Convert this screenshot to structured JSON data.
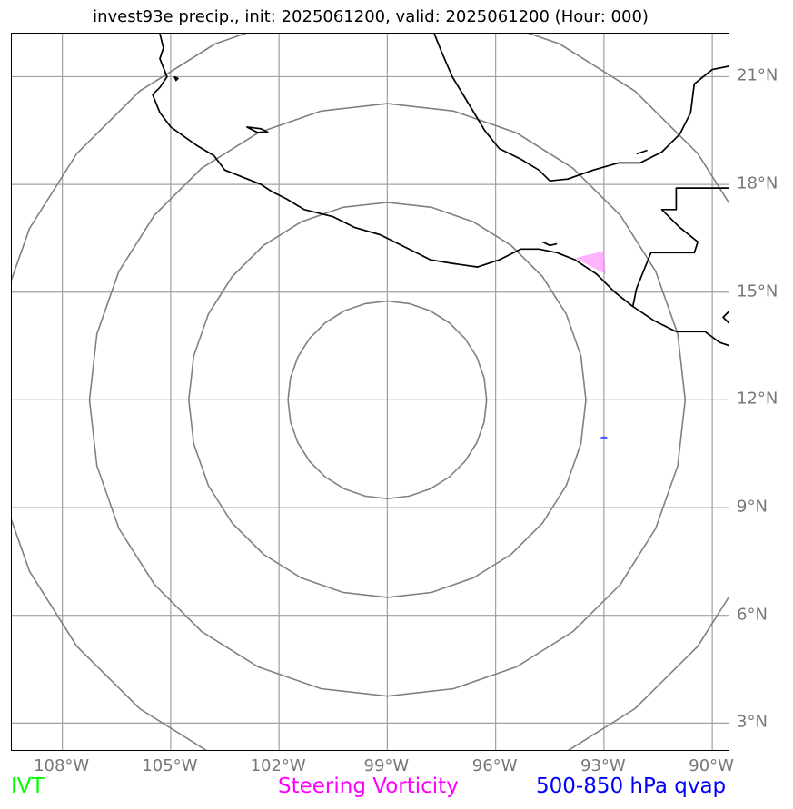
{
  "title": "invest93e precip., init: 2025061200, valid: 2025061200 (Hour: 000)",
  "map": {
    "lon_range": [
      -109.4,
      -89.5
    ],
    "lat_range": [
      2.2,
      22.2
    ],
    "lon_ticks": [
      {
        "value": -108,
        "label": "108°W"
      },
      {
        "value": -105,
        "label": "105°W"
      },
      {
        "value": -102,
        "label": "102°W"
      },
      {
        "value": -99,
        "label": "99°W"
      },
      {
        "value": -96,
        "label": "96°W"
      },
      {
        "value": -93,
        "label": "93°W"
      },
      {
        "value": -90,
        "label": "90°W"
      }
    ],
    "lat_ticks": [
      {
        "value": 3,
        "label": "3°N"
      },
      {
        "value": 6,
        "label": "6°N"
      },
      {
        "value": 9,
        "label": "9°N"
      },
      {
        "value": 12,
        "label": "12°N"
      },
      {
        "value": 15,
        "label": "15°N"
      },
      {
        "value": 18,
        "label": "18°N"
      },
      {
        "value": 21,
        "label": "21°N"
      }
    ],
    "grid": true,
    "range_rings": {
      "center": {
        "lon": -99,
        "lat": 12
      },
      "radii_deg": [
        2.75,
        5.5,
        8.25,
        11
      ],
      "color": "#808080"
    },
    "coastline_color": "#000000",
    "steering_vorticity_area": {
      "color": "#ff80ff",
      "polygon": [
        [
          -93.8,
          15.95
        ],
        [
          -93.0,
          16.15
        ],
        [
          -92.95,
          15.5
        ]
      ]
    },
    "qvap_marker": {
      "color": "#5050ff",
      "lon": -93.0,
      "lat": 10.95
    }
  },
  "legend": {
    "ivt": {
      "label": "IVT",
      "color": "#00ff00"
    },
    "vorticity": {
      "label": "Steering Vorticity",
      "color": "#ff00ff"
    },
    "qvap": {
      "label": "500-850 hPa qvap",
      "color": "#0000ff"
    }
  }
}
